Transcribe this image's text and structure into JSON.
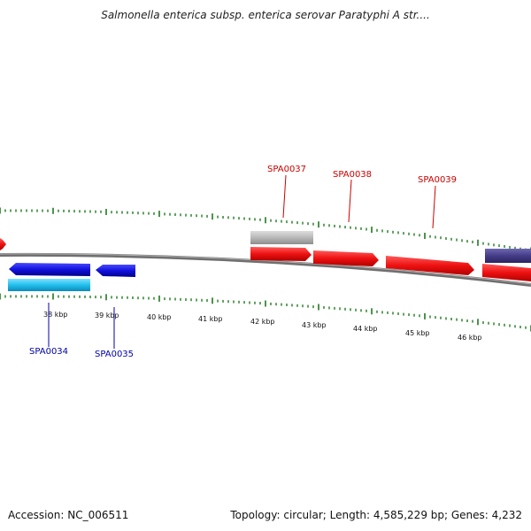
{
  "title": "Salmonella enterica subsp. enterica serovar Paratyphi A str....",
  "footer": {
    "accession": "Accession: NC_006511",
    "summary": "Topology: circular; Length: 4,585,229 bp; Genes: 4,232"
  },
  "colors": {
    "backbone": "#7a7a7a",
    "tick": "#1e7a1e",
    "forward_gene": "#ee1111",
    "reverse_gene": "#1111dd",
    "reverse_gene_light": "#22c0ee",
    "pseudogene": "#b8b8b8",
    "other_gene": "#443c88",
    "forward_label": "#cc0000",
    "reverse_label": "#0000aa"
  },
  "scale": {
    "labels": [
      "38 kbp",
      "39 kbp",
      "40 kbp",
      "41 kbp",
      "42 kbp",
      "43 kbp",
      "44 kbp",
      "45 kbp",
      "46 kbp"
    ]
  },
  "genes": {
    "labeled": [
      {
        "name": "SPA0034",
        "strand": "reverse"
      },
      {
        "name": "SPA0035",
        "strand": "reverse"
      },
      {
        "name": "SPA0037",
        "strand": "forward"
      },
      {
        "name": "SPA0038",
        "strand": "forward"
      },
      {
        "name": "SPA0039",
        "strand": "forward"
      }
    ]
  }
}
